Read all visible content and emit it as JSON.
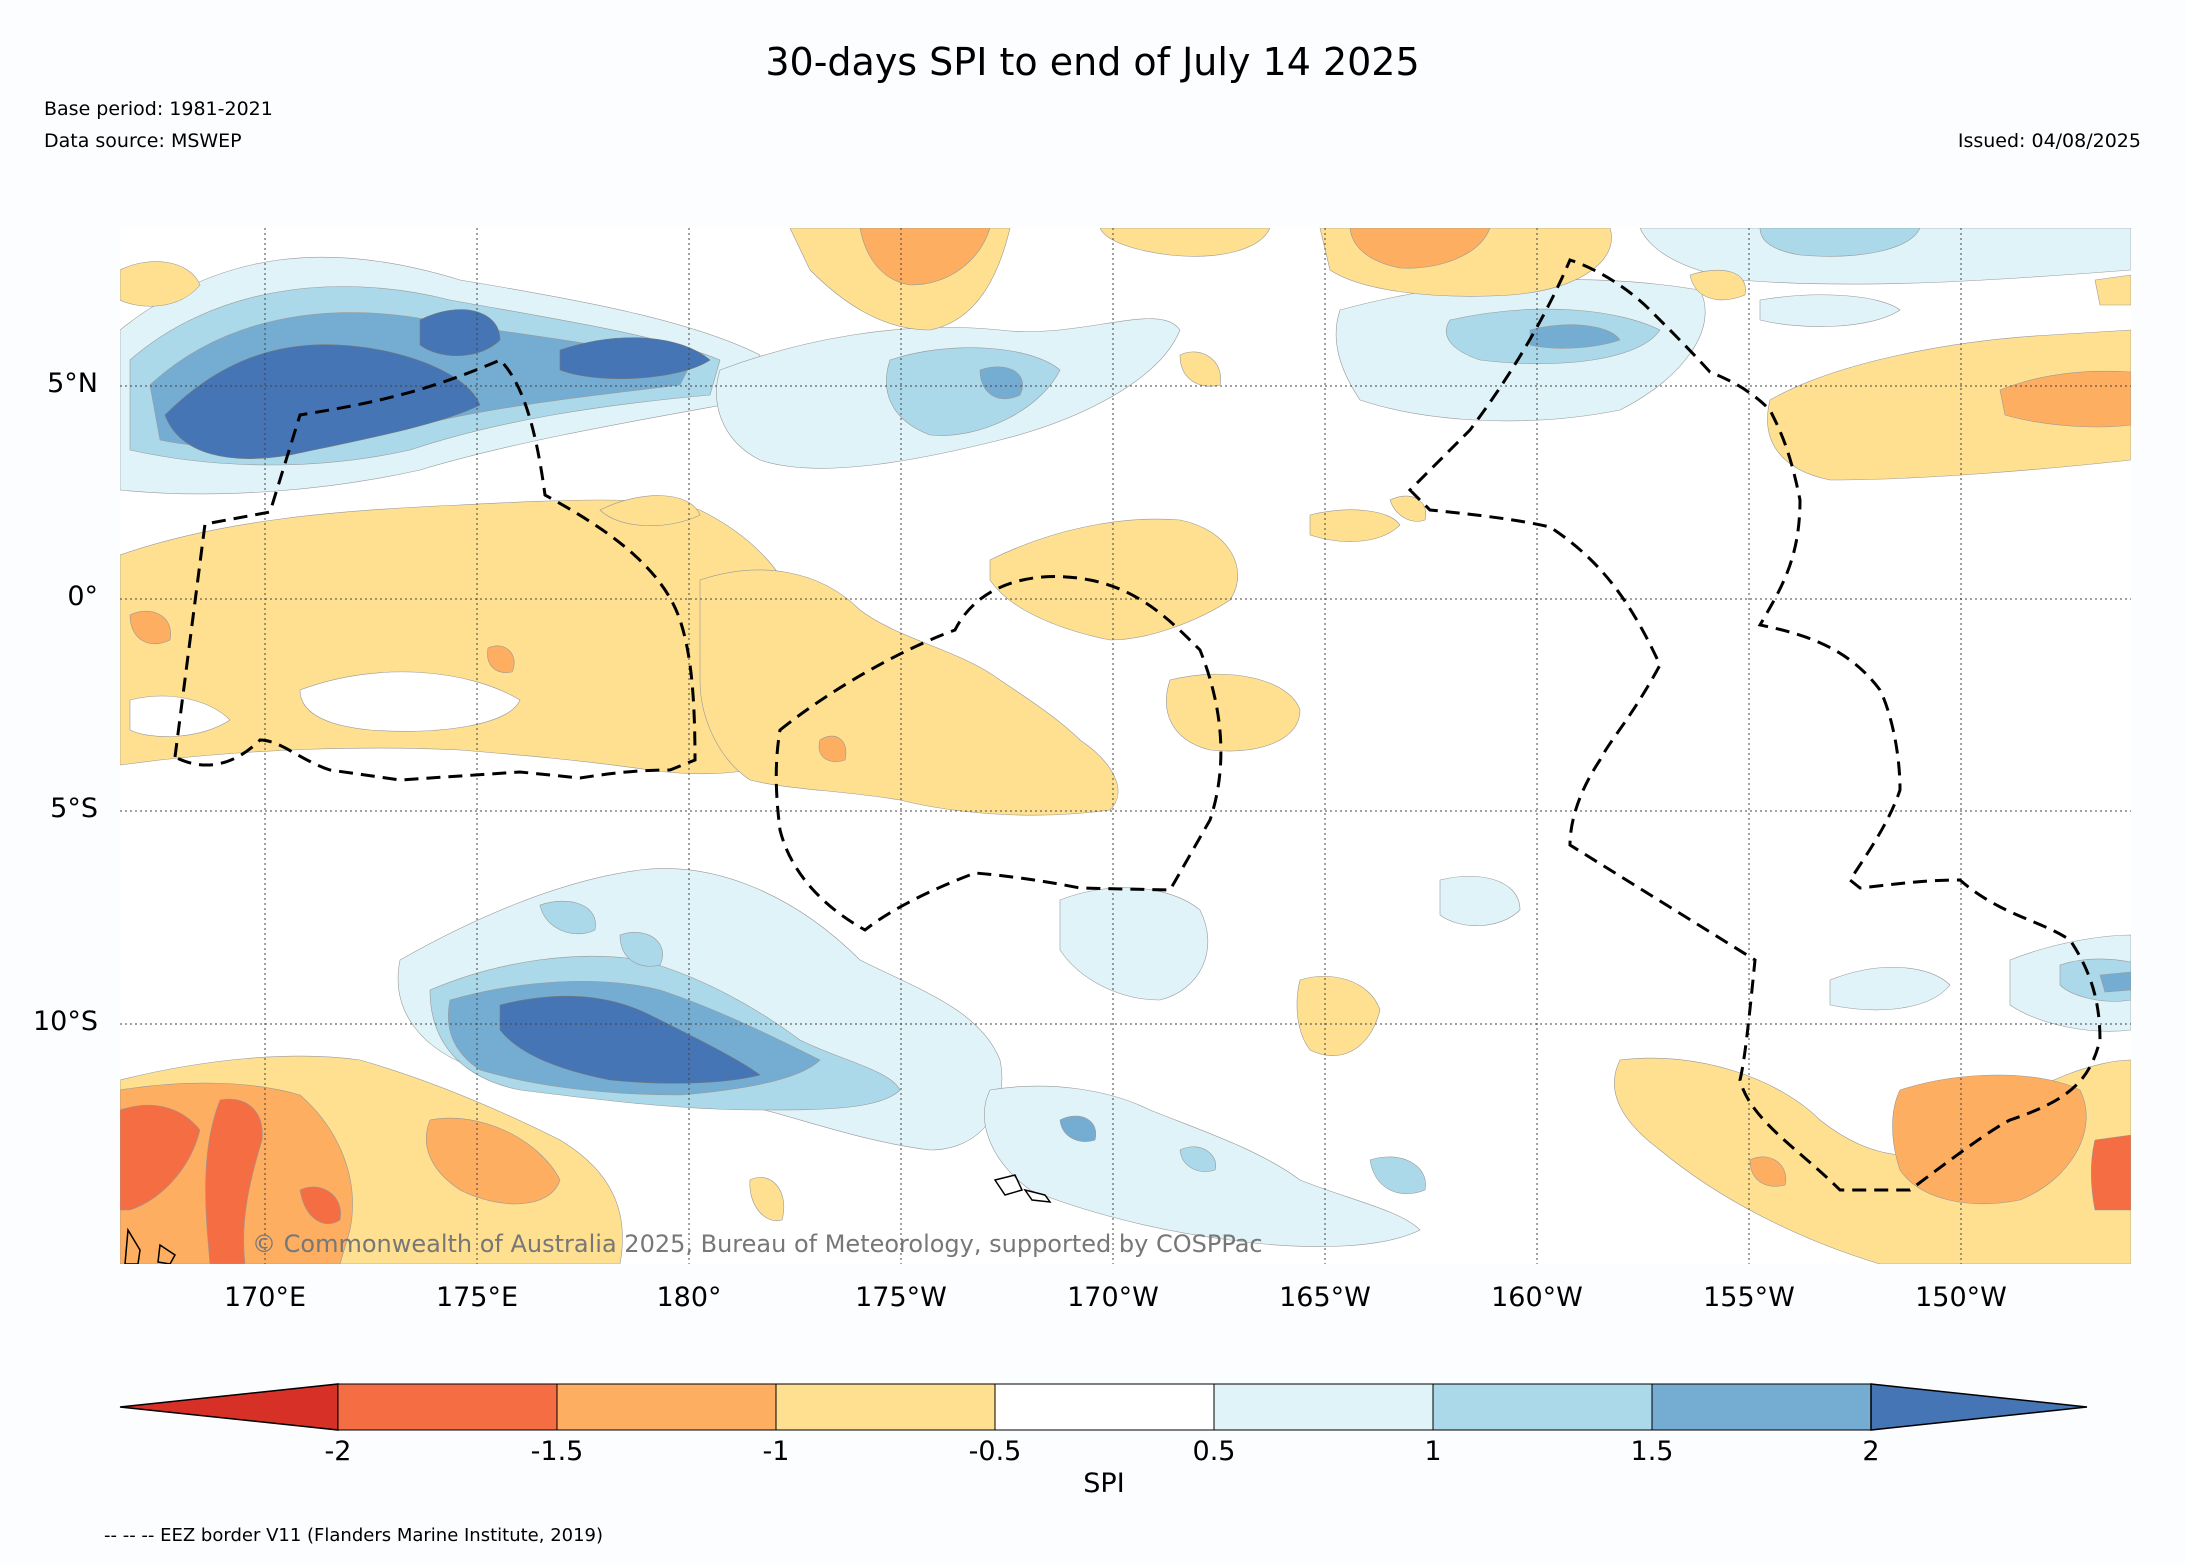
{
  "header": {
    "title": "30-days SPI to end of July 14 2025",
    "base_period": "Base period: 1981-2021",
    "data_source": "Data source: MSWEP",
    "issued": "Issued: 04/08/2025"
  },
  "map": {
    "lat_labels": [
      "5°N",
      "0°",
      "5°S",
      "10°S"
    ],
    "lon_labels": [
      "170°E",
      "175°E",
      "180°",
      "175°W",
      "170°W",
      "165°W",
      "160°W",
      "155°W",
      "150°W"
    ],
    "copyright": "© Commonwealth of Australia 2025, Bureau of Meteorology, supported by COSPPac"
  },
  "colorbar": {
    "title": "SPI",
    "tick_labels": [
      "-2",
      "-1.5",
      "-1",
      "-0.5",
      "0.5",
      "1",
      "1.5",
      "2"
    ],
    "colors": [
      "#d73027",
      "#f46d43",
      "#fdae61",
      "#fee090",
      "#ffffff",
      "#e0f3f8",
      "#abd9e9",
      "#74add1",
      "#4575b4"
    ]
  },
  "footer": {
    "legend_note": "-- -- -- EEZ border V11 (Flanders Marine Institute, 2019)"
  }
}
